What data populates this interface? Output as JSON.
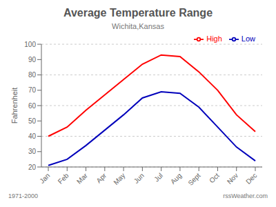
{
  "chart_data": {
    "type": "line",
    "title": "Average Temperature Range",
    "subtitle": "Wichita,Kansas",
    "y_label": "Fahrenheit",
    "categories": [
      "Jan",
      "Feb",
      "Mar",
      "Apr",
      "May",
      "Jun",
      "Jul",
      "Aug",
      "Sept",
      "Oct",
      "Nov",
      "Dec"
    ],
    "series": [
      {
        "name": "High",
        "color": "#ff0000",
        "values": [
          40,
          46,
          57,
          67,
          77,
          87,
          93,
          92,
          82,
          70,
          54,
          43
        ]
      },
      {
        "name": "Low",
        "color": "#0000bb",
        "values": [
          21,
          25,
          34,
          44,
          54,
          65,
          69,
          68,
          59,
          46,
          33,
          24
        ]
      }
    ],
    "ylim": [
      20,
      100
    ],
    "yticks": [
      20,
      30,
      40,
      50,
      60,
      70,
      80,
      90,
      100
    ],
    "grid": true,
    "legend": "upper right",
    "annotations": [
      "1971-2000",
      "rssWeather.com"
    ]
  }
}
